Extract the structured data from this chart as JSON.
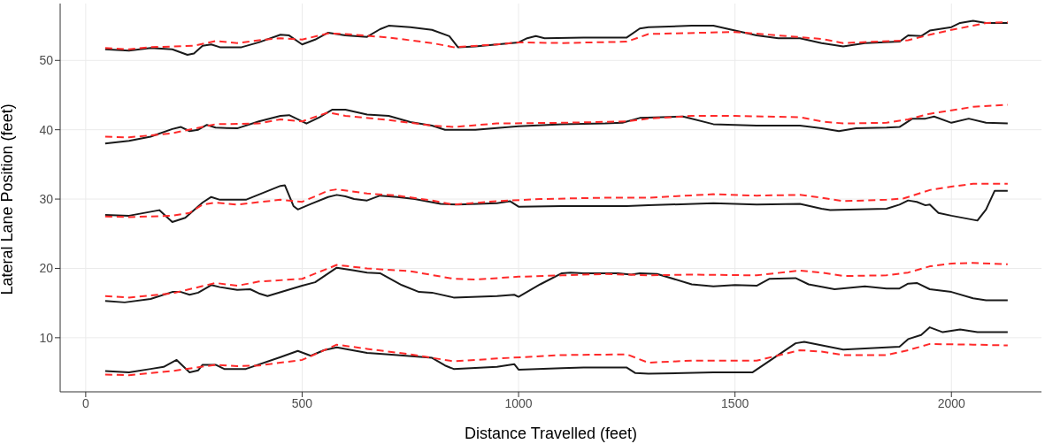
{
  "chart_data": {
    "type": "line",
    "xlabel": "Distance Travelled (feet)",
    "ylabel": "Lateral Lane Position (feet)",
    "xlim": [
      -59,
      2208
    ],
    "xticks": [
      0,
      500,
      1000,
      1500,
      2000
    ],
    "ylim": [
      2.2,
      58.2
    ],
    "yticks": [
      10,
      20,
      30,
      40,
      50
    ],
    "grid": true,
    "series": [
      {
        "color": "#1a1a1a",
        "line_style": "solid",
        "x": [
          45,
          100,
          150,
          200,
          235,
          250,
          270,
          290,
          310,
          360,
          400,
          450,
          470,
          500,
          530,
          560,
          580,
          600,
          650,
          680,
          700,
          750,
          800,
          840,
          860,
          900,
          950,
          1000,
          1020,
          1040,
          1060,
          1150,
          1250,
          1280,
          1300,
          1400,
          1450,
          1550,
          1600,
          1650,
          1700,
          1750,
          1800,
          1880,
          1900,
          1930,
          1950,
          2000,
          2020,
          2050,
          2080,
          2130
        ],
        "values": [
          51.6,
          51.4,
          51.8,
          51.6,
          50.8,
          51.0,
          52.1,
          52.3,
          51.9,
          51.9,
          52.6,
          53.7,
          53.6,
          52.3,
          53.0,
          54.0,
          53.8,
          53.6,
          53.4,
          54.5,
          55.0,
          54.8,
          54.4,
          53.5,
          51.9,
          52.0,
          52.3,
          52.6,
          53.2,
          53.5,
          53.2,
          53.3,
          53.3,
          54.6,
          54.8,
          55.0,
          55.0,
          53.6,
          53.2,
          53.2,
          52.5,
          52.0,
          52.5,
          52.7,
          53.6,
          53.5,
          54.3,
          54.8,
          55.4,
          55.7,
          55.4,
          55.4
        ]
      },
      {
        "color": "#ff2a2a",
        "line_style": "dashed",
        "x": [
          45,
          100,
          150,
          250,
          300,
          350,
          400,
          450,
          500,
          560,
          600,
          700,
          800,
          850,
          950,
          1000,
          1100,
          1250,
          1300,
          1500,
          1600,
          1700,
          1750,
          1900,
          1950,
          2000,
          2050,
          2080,
          2130
        ],
        "values": [
          51.8,
          51.6,
          51.9,
          52.1,
          52.8,
          52.5,
          52.9,
          53.2,
          53.0,
          53.9,
          53.8,
          53.3,
          52.5,
          51.9,
          52.3,
          52.6,
          52.5,
          52.7,
          53.8,
          54.1,
          53.6,
          53.1,
          52.5,
          52.9,
          53.7,
          54.4,
          55.0,
          55.4,
          55.5
        ]
      },
      {
        "color": "#1a1a1a",
        "line_style": "solid",
        "x": [
          45,
          100,
          150,
          200,
          220,
          240,
          260,
          280,
          300,
          350,
          400,
          450,
          470,
          510,
          540,
          570,
          600,
          650,
          700,
          750,
          800,
          830,
          900,
          1000,
          1100,
          1200,
          1240,
          1280,
          1380,
          1450,
          1550,
          1650,
          1700,
          1740,
          1780,
          1850,
          1880,
          1910,
          1940,
          1960,
          2000,
          2040,
          2080,
          2130
        ],
        "values": [
          38.0,
          38.4,
          39.0,
          40.1,
          40.4,
          39.8,
          40.0,
          40.7,
          40.3,
          40.2,
          41.2,
          42.0,
          42.1,
          40.9,
          41.8,
          42.9,
          42.9,
          42.2,
          42.0,
          41.1,
          40.6,
          40.0,
          40.0,
          40.5,
          40.8,
          40.9,
          41.0,
          41.7,
          41.9,
          40.8,
          40.6,
          40.6,
          40.2,
          39.8,
          40.2,
          40.3,
          40.4,
          41.6,
          41.6,
          41.9,
          41.0,
          41.6,
          41.0,
          40.9
        ]
      },
      {
        "color": "#ff2a2a",
        "line_style": "dashed",
        "x": [
          45,
          100,
          200,
          300,
          400,
          450,
          500,
          560,
          600,
          700,
          800,
          850,
          950,
          1100,
          1250,
          1300,
          1400,
          1500,
          1650,
          1700,
          1750,
          1850,
          1900,
          1950,
          2000,
          2050,
          2130
        ],
        "values": [
          39.0,
          38.9,
          39.5,
          40.8,
          40.9,
          41.5,
          41.2,
          42.5,
          42.0,
          41.4,
          40.6,
          40.4,
          40.9,
          41.0,
          41.2,
          41.6,
          42.0,
          42.0,
          41.8,
          41.2,
          40.9,
          41.0,
          41.5,
          42.3,
          42.8,
          43.3,
          43.6
        ]
      },
      {
        "color": "#1a1a1a",
        "line_style": "solid",
        "x": [
          45,
          100,
          170,
          200,
          230,
          270,
          290,
          310,
          370,
          450,
          460,
          480,
          490,
          520,
          560,
          580,
          600,
          620,
          650,
          680,
          720,
          760,
          820,
          860,
          950,
          980,
          1000,
          1100,
          1250,
          1300,
          1450,
          1550,
          1650,
          1700,
          1720,
          1850,
          1880,
          1900,
          1920,
          1940,
          1950,
          1970,
          2000,
          2060,
          2080,
          2100,
          2130
        ],
        "values": [
          27.7,
          27.6,
          28.4,
          26.7,
          27.3,
          29.5,
          30.3,
          29.9,
          29.9,
          31.9,
          32.0,
          29.0,
          28.5,
          29.3,
          30.3,
          30.6,
          30.4,
          30.0,
          29.8,
          30.5,
          30.3,
          30.0,
          29.3,
          29.2,
          29.4,
          29.7,
          28.9,
          29.0,
          29.0,
          29.1,
          29.4,
          29.2,
          29.3,
          28.6,
          28.4,
          28.6,
          29.2,
          29.8,
          29.6,
          29.1,
          29.2,
          28.0,
          27.6,
          26.9,
          28.5,
          31.2,
          31.2
        ]
      },
      {
        "color": "#ff2a2a",
        "line_style": "dashed",
        "x": [
          45,
          100,
          200,
          240,
          270,
          300,
          350,
          450,
          500,
          560,
          580,
          650,
          720,
          800,
          850,
          950,
          1050,
          1200,
          1300,
          1450,
          1550,
          1650,
          1700,
          1750,
          1850,
          1890,
          1950,
          2000,
          2050,
          2130
        ],
        "values": [
          27.5,
          27.4,
          27.6,
          28.0,
          29.2,
          29.5,
          29.2,
          29.9,
          29.6,
          31.2,
          31.4,
          30.8,
          30.5,
          29.8,
          29.2,
          29.7,
          30.0,
          30.2,
          30.2,
          30.7,
          30.5,
          30.6,
          30.2,
          29.7,
          29.9,
          30.1,
          31.3,
          31.8,
          32.2,
          32.2
        ]
      },
      {
        "color": "#1a1a1a",
        "line_style": "solid",
        "x": [
          45,
          90,
          150,
          200,
          220,
          240,
          260,
          290,
          310,
          350,
          380,
          400,
          420,
          500,
          530,
          580,
          620,
          650,
          680,
          730,
          770,
          800,
          850,
          950,
          990,
          1000,
          1050,
          1100,
          1120,
          1150,
          1200,
          1230,
          1260,
          1280,
          1320,
          1400,
          1450,
          1500,
          1550,
          1580,
          1640,
          1670,
          1730,
          1800,
          1850,
          1880,
          1900,
          1920,
          1950,
          2000,
          2050,
          2080,
          2130
        ],
        "values": [
          15.3,
          15.1,
          15.6,
          16.6,
          16.6,
          16.2,
          16.5,
          17.6,
          17.3,
          16.9,
          17.0,
          16.4,
          16.0,
          17.5,
          18.0,
          20.1,
          19.7,
          19.4,
          19.3,
          17.6,
          16.6,
          16.5,
          15.8,
          16.0,
          16.2,
          15.9,
          17.7,
          19.3,
          19.4,
          19.3,
          19.3,
          19.3,
          19.1,
          19.3,
          19.2,
          17.7,
          17.4,
          17.6,
          17.5,
          18.5,
          18.6,
          17.7,
          17.0,
          17.4,
          17.1,
          17.1,
          17.8,
          17.9,
          17.0,
          16.6,
          15.7,
          15.4,
          15.4
        ]
      },
      {
        "color": "#ff2a2a",
        "line_style": "dashed",
        "x": [
          45,
          100,
          200,
          300,
          350,
          400,
          500,
          580,
          650,
          750,
          850,
          900,
          1000,
          1100,
          1200,
          1300,
          1400,
          1550,
          1650,
          1700,
          1750,
          1850,
          1900,
          1950,
          2000,
          2050,
          2130
        ],
        "values": [
          16.0,
          15.8,
          16.4,
          17.9,
          17.5,
          18.1,
          18.5,
          20.5,
          20.0,
          19.6,
          18.5,
          18.4,
          18.8,
          19.0,
          19.2,
          19.0,
          19.1,
          19.0,
          19.7,
          19.4,
          18.9,
          19.0,
          19.4,
          20.3,
          20.7,
          20.8,
          20.6
        ]
      },
      {
        "color": "#1a1a1a",
        "line_style": "solid",
        "x": [
          45,
          100,
          150,
          180,
          210,
          240,
          260,
          270,
          300,
          320,
          370,
          450,
          490,
          520,
          550,
          580,
          650,
          700,
          800,
          830,
          850,
          950,
          990,
          1000,
          1100,
          1150,
          1250,
          1270,
          1300,
          1450,
          1540,
          1640,
          1660,
          1750,
          1850,
          1880,
          1900,
          1930,
          1950,
          1980,
          2020,
          2060,
          2130
        ],
        "values": [
          5.2,
          5.0,
          5.5,
          5.8,
          6.8,
          5.0,
          5.3,
          6.1,
          6.1,
          5.5,
          5.5,
          7.2,
          8.1,
          7.4,
          8.2,
          8.6,
          7.8,
          7.6,
          7.1,
          6.0,
          5.5,
          5.8,
          6.2,
          5.4,
          5.6,
          5.7,
          5.7,
          4.9,
          4.8,
          5.0,
          5.0,
          9.2,
          9.4,
          8.3,
          8.6,
          8.7,
          9.8,
          10.4,
          11.5,
          10.8,
          11.2,
          10.8,
          10.8
        ]
      },
      {
        "color": "#ff2a2a",
        "line_style": "dashed",
        "x": [
          45,
          100,
          200,
          300,
          350,
          400,
          500,
          580,
          650,
          750,
          850,
          950,
          1100,
          1250,
          1300,
          1400,
          1550,
          1650,
          1700,
          1750,
          1850,
          1900,
          1950,
          2050,
          2130
        ],
        "values": [
          4.7,
          4.6,
          5.2,
          6.1,
          5.9,
          6.0,
          6.8,
          9.0,
          8.4,
          7.6,
          6.6,
          7.0,
          7.5,
          7.6,
          6.4,
          6.7,
          6.7,
          8.2,
          8.0,
          7.5,
          7.5,
          8.2,
          9.1,
          9.0,
          8.9
        ]
      }
    ]
  }
}
